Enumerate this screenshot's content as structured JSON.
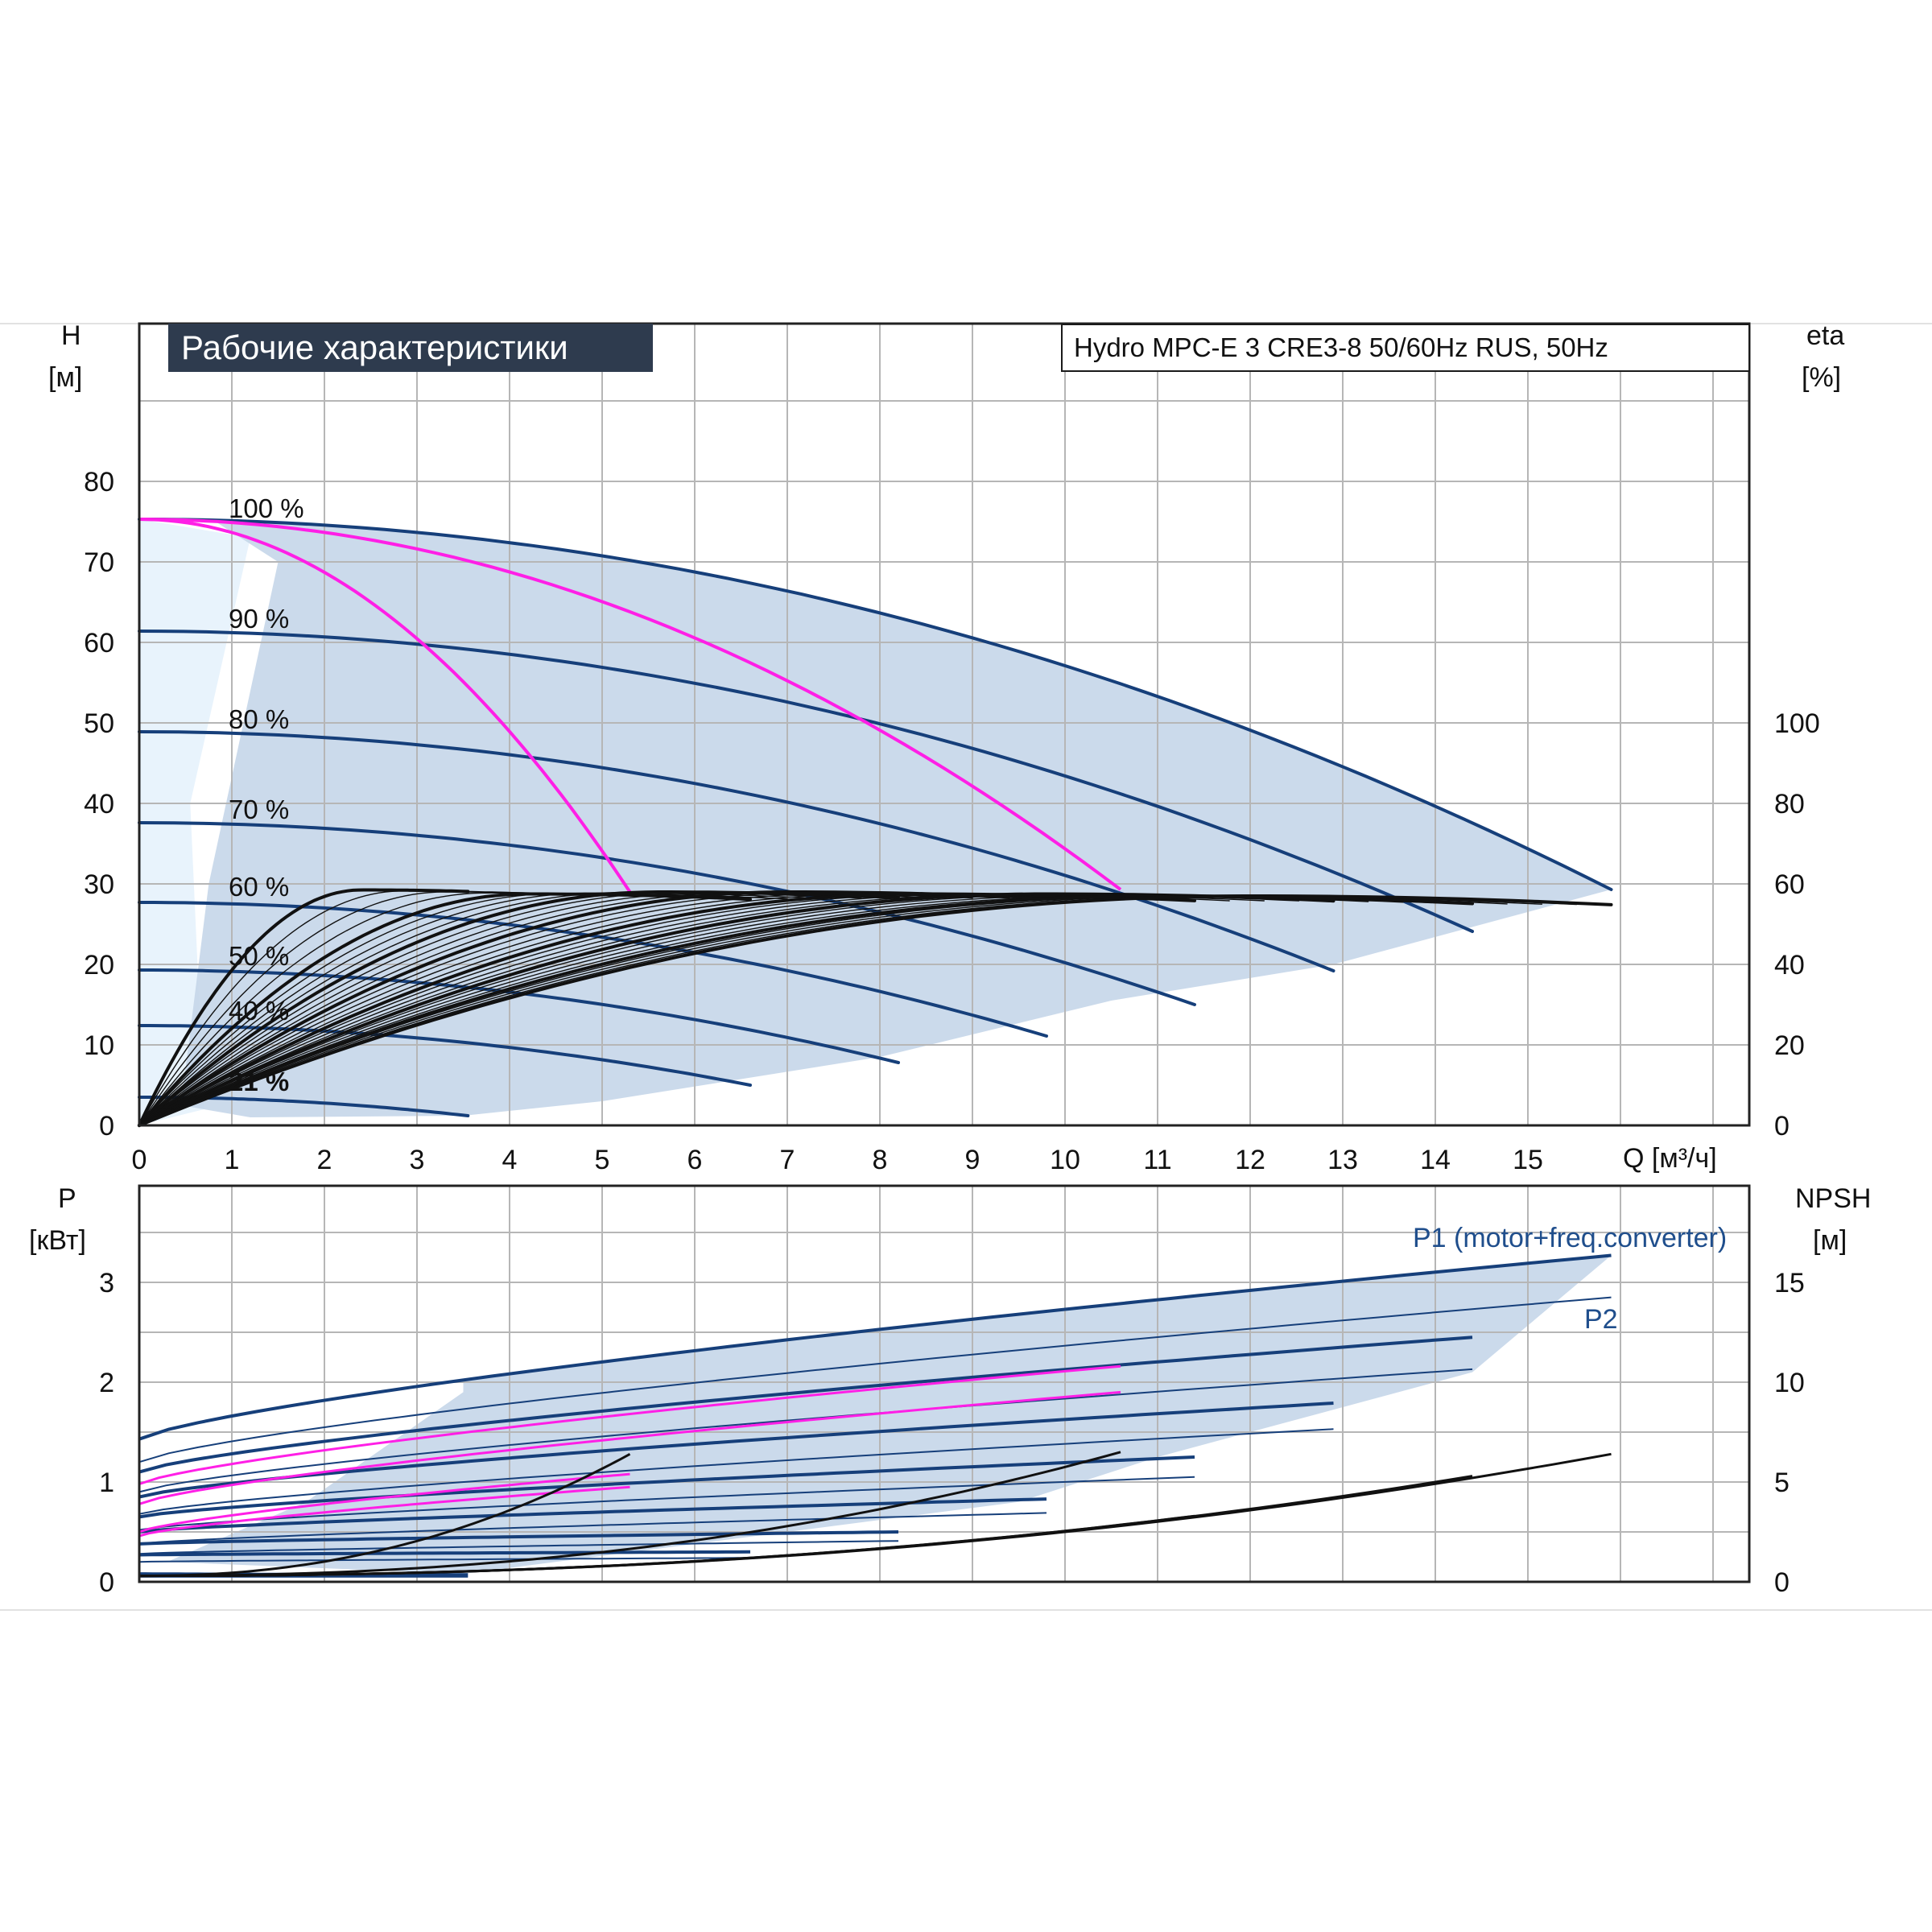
{
  "colors": {
    "curve": "#163f7a",
    "mag": "#ff1fe6",
    "shade": "#c5d6e9",
    "shade_light": "#e8f3fc",
    "grid": "#b6b6b6",
    "title_bg": "#2e3b4e"
  },
  "header": {
    "title": "Рабочие характеристики",
    "model": "Hydro MPC-E 3 CRE3-8 50/60Hz RUS, 50Hz"
  },
  "axes": {
    "h_label": "H",
    "h_unit": "[м]",
    "eta_label": "eta",
    "eta_unit": "[%]",
    "q_label": "Q [м³/ч]",
    "p_label": "P",
    "p_unit": "[кВт]",
    "npsh_label": "NPSH",
    "npsh_unit": "[м]"
  },
  "chart_data": [
    {
      "type": "line",
      "title": "",
      "xlabel": "Q [м³/ч]",
      "ylabel": "H [м]",
      "y2label": "eta [%]",
      "xlim": [
        0,
        17.4
      ],
      "ylim": [
        0,
        90
      ],
      "y2lim": [
        0,
        120
      ],
      "x_ticks": [
        0,
        1,
        2,
        3,
        4,
        5,
        6,
        7,
        8,
        9,
        10,
        11,
        12,
        13,
        14,
        15
      ],
      "y_ticks": [
        0,
        10,
        20,
        30,
        40,
        50,
        60,
        70,
        80
      ],
      "y2_ticks": [
        0,
        20,
        40,
        60,
        80,
        100
      ],
      "grid": true,
      "speed_labels": [
        {
          "text": "100 %",
          "q": 1.0,
          "h": 76.5
        },
        {
          "text": "90 %",
          "q": 1.0,
          "h": 62.8
        },
        {
          "text": "80 %",
          "q": 1.0,
          "h": 50.3
        },
        {
          "text": "70 %",
          "q": 1.0,
          "h": 39.1
        },
        {
          "text": "60 %",
          "q": 1.0,
          "h": 29.5
        },
        {
          "text": "50 %",
          "q": 1.0,
          "h": 20.9
        },
        {
          "text": "40 %",
          "q": 1.0,
          "h": 14.1
        },
        {
          "text": "21 %",
          "q": 1.0,
          "h": 5.3
        }
      ],
      "series": [
        {
          "name": "100 %",
          "h0": 75.3,
          "qmax": 15.9,
          "hend": 29.3
        },
        {
          "name": "90 %",
          "h0": 61.4,
          "qmax": 14.4,
          "hend": 24.1
        },
        {
          "name": "80 %",
          "h0": 48.9,
          "qmax": 12.9,
          "hend": 19.2
        },
        {
          "name": "70 %",
          "h0": 37.6,
          "qmax": 11.4,
          "hend": 15.0
        },
        {
          "name": "60 %",
          "h0": 27.7,
          "qmax": 9.8,
          "hend": 11.1
        },
        {
          "name": "50 %",
          "h0": 19.3,
          "qmax": 8.2,
          "hend": 7.8
        },
        {
          "name": "40 %",
          "h0": 12.4,
          "qmax": 6.6,
          "hend": 5.0
        },
        {
          "name": "21 %",
          "h0": 3.5,
          "qmax": 3.55,
          "hend": 1.2
        }
      ],
      "system_curves": [
        {
          "from": [
            0,
            75.3
          ],
          "to": [
            5.3,
            29.0
          ]
        },
        {
          "from": [
            0,
            75.3
          ],
          "to": [
            10.6,
            29.3
          ]
        }
      ],
      "efficiency_peaks": [
        {
          "peak_q": 2.4,
          "peak_eta": 58.5,
          "qmax": 3.55
        },
        {
          "peak_q": 4.2,
          "peak_eta": 57.5,
          "qmax": 6.6
        },
        {
          "peak_q": 5.6,
          "peak_eta": 58.0,
          "qmax": 8.2
        },
        {
          "peak_q": 7.0,
          "peak_eta": 58.0,
          "qmax": 9.8
        },
        {
          "peak_q": 8.4,
          "peak_eta": 57.5,
          "qmax": 11.4
        },
        {
          "peak_q": 9.8,
          "peak_eta": 57.5,
          "qmax": 12.9
        },
        {
          "peak_q": 11.0,
          "peak_eta": 57.0,
          "qmax": 14.4
        },
        {
          "peak_q": 12.0,
          "peak_eta": 57.0,
          "qmax": 15.9
        }
      ]
    },
    {
      "type": "line",
      "title": "",
      "xlabel": "Q [м³/ч]",
      "ylabel": "P [кВт]",
      "y2label": "NPSH [м]",
      "xlim": [
        0,
        17.4
      ],
      "ylim": [
        0,
        3.9
      ],
      "y2lim": [
        0,
        19.5
      ],
      "y_ticks": [
        0,
        1,
        2,
        3
      ],
      "y2_ticks": [
        0,
        5,
        10,
        15
      ],
      "grid": true,
      "annotations": [
        "P1 (motor+freq.converter)",
        "P2"
      ],
      "power_p1": [
        {
          "p0": 1.43,
          "qmax": 15.9,
          "pend": 3.27
        },
        {
          "p0": 1.1,
          "qmax": 14.4,
          "pend": 2.45
        },
        {
          "p0": 0.85,
          "qmax": 12.9,
          "pend": 1.79
        },
        {
          "p0": 0.65,
          "qmax": 11.4,
          "pend": 1.25
        },
        {
          "p0": 0.5,
          "qmax": 9.8,
          "pend": 0.83
        },
        {
          "p0": 0.38,
          "qmax": 8.2,
          "pend": 0.5
        },
        {
          "p0": 0.27,
          "qmax": 6.6,
          "pend": 0.3
        },
        {
          "p0": 0.08,
          "qmax": 3.55,
          "pend": 0.07
        }
      ],
      "power_p2": [
        {
          "p0": 1.2,
          "qmax": 15.9,
          "pend": 2.85
        },
        {
          "p0": 0.9,
          "qmax": 14.4,
          "pend": 2.13
        },
        {
          "p0": 0.68,
          "qmax": 12.9,
          "pend": 1.53
        },
        {
          "p0": 0.52,
          "qmax": 11.4,
          "pend": 1.05
        },
        {
          "p0": 0.38,
          "qmax": 9.8,
          "pend": 0.69
        },
        {
          "p0": 0.28,
          "qmax": 8.2,
          "pend": 0.41
        },
        {
          "p0": 0.2,
          "qmax": 6.6,
          "pend": 0.24
        },
        {
          "p0": 0.05,
          "qmax": 3.55,
          "pend": 0.05
        }
      ],
      "power_mag": [
        {
          "p0": 0.98,
          "qmax": 10.6,
          "pend": 2.16
        },
        {
          "p0": 0.78,
          "qmax": 10.6,
          "pend": 1.9
        },
        {
          "p0": 0.5,
          "qmax": 5.3,
          "pend": 1.08
        },
        {
          "p0": 0.46,
          "qmax": 5.3,
          "pend": 0.95
        }
      ],
      "npsh": [
        {
          "qmax": 15.9,
          "nend": 6.4
        },
        {
          "qmax": 14.4,
          "nend": 5.3
        },
        {
          "qmax": 12.9,
          "nend": 4.2
        },
        {
          "qmax": 11.4,
          "nend": 3.3
        },
        {
          "qmax": 10.6,
          "nend": 6.5
        },
        {
          "qmax": 5.3,
          "nend": 6.4
        }
      ]
    }
  ]
}
